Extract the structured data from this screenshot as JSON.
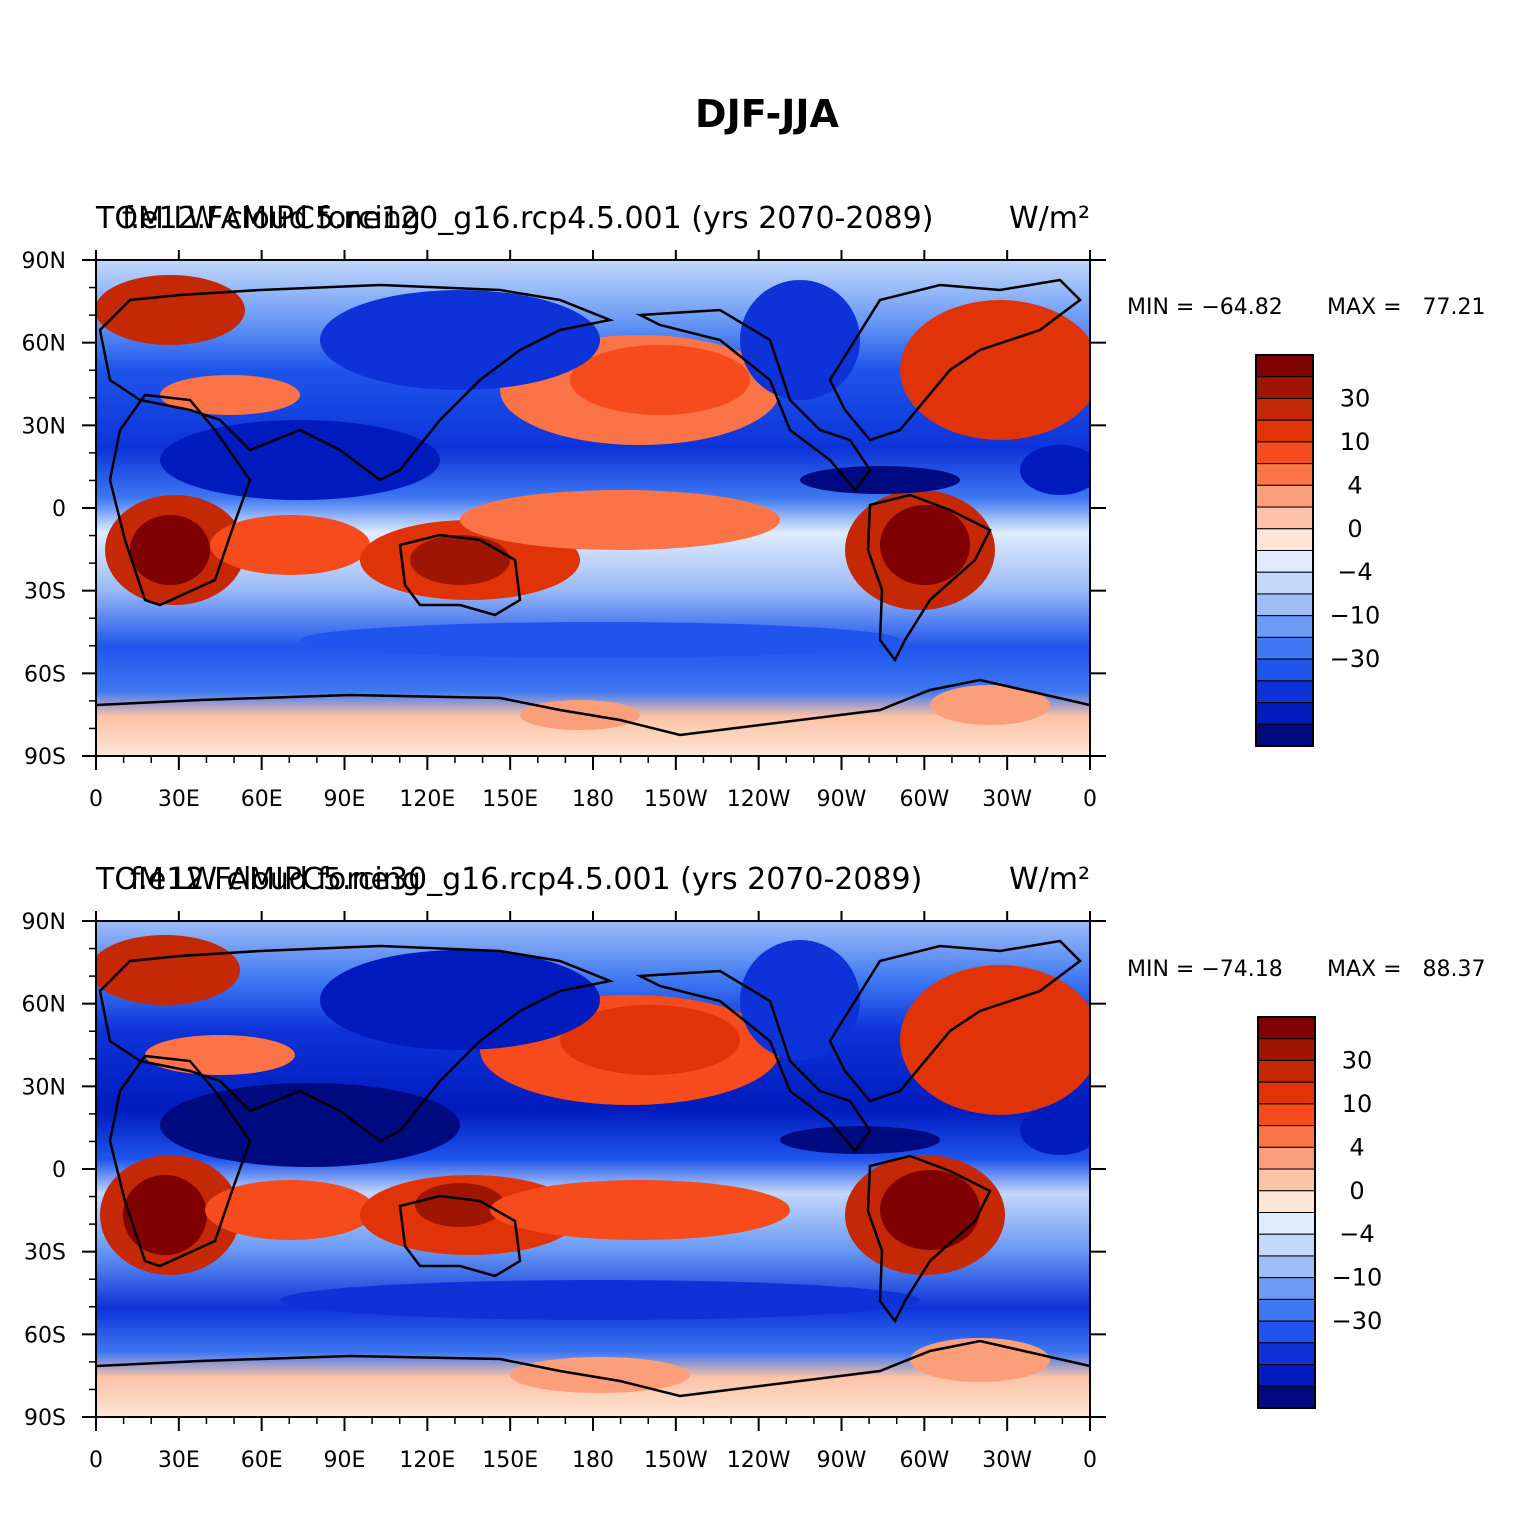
{
  "figure_title": "DJF-JJA",
  "chart_data": [
    {
      "type": "heatmap",
      "title_left": "f.e12.FAMIPC5.ne120_g16.rcp4.5.001 (yrs 2070-2089)",
      "title_left_overlap": "TOM LW cloud forcing",
      "units": "W/m²",
      "min_label": "MIN = −64.82",
      "max_label": "MAX =   77.21",
      "min": -64.82,
      "max": 77.21,
      "x_ticks": [
        "0",
        "30E",
        "60E",
        "90E",
        "120E",
        "150E",
        "180",
        "150W",
        "120W",
        "90W",
        "60W",
        "30W",
        "0"
      ],
      "y_ticks": [
        "90N",
        "60N",
        "30N",
        "0",
        "30S",
        "60S",
        "90S"
      ],
      "xlim": [
        0,
        360
      ],
      "ylim": [
        -90,
        90
      ],
      "colorbar": {
        "labels": [
          "30",
          "10",
          "4",
          "0",
          "−4",
          "−10",
          "−30"
        ],
        "levels": [
          -50,
          -40,
          -30,
          -20,
          -15,
          -10,
          -6,
          -4,
          -2,
          0,
          2,
          4,
          6,
          10,
          15,
          20,
          30,
          40,
          50
        ]
      }
    },
    {
      "type": "heatmap",
      "title_left": "f.e12.FAMIPC5.ne30_g16.rcp4.5.001 (yrs 2070-2089)",
      "title_left_overlap": "TOM LW cloud forcing",
      "units": "W/m²",
      "min_label": "MIN = −74.18",
      "max_label": "MAX =   88.37",
      "min": -74.18,
      "max": 88.37,
      "x_ticks": [
        "0",
        "30E",
        "60E",
        "90E",
        "120E",
        "150E",
        "180",
        "150W",
        "120W",
        "90W",
        "60W",
        "30W",
        "0"
      ],
      "y_ticks": [
        "90N",
        "60N",
        "30N",
        "0",
        "30S",
        "60S",
        "90S"
      ],
      "xlim": [
        0,
        360
      ],
      "ylim": [
        -90,
        90
      ],
      "colorbar": {
        "labels": [
          "30",
          "10",
          "4",
          "0",
          "−4",
          "−10",
          "−30"
        ],
        "levels": [
          -50,
          -40,
          -30,
          -20,
          -15,
          -10,
          -6,
          -4,
          -2,
          0,
          2,
          4,
          6,
          10,
          15,
          20,
          30,
          40,
          50
        ]
      }
    }
  ],
  "colors": {
    "palette": [
      "#000a80",
      "#001bbd",
      "#0d33d8",
      "#1f55ec",
      "#3e78f2",
      "#6b9bf5",
      "#9fbdf6",
      "#c3d8fa",
      "#e0ecfd",
      "#fde6d6",
      "#fcc3a6",
      "#fb9f7b",
      "#fb7448",
      "#f54b1d",
      "#e03308",
      "#c42804",
      "#9e1602",
      "#7e0000"
    ],
    "ocean_base": "#dfe9f8",
    "coast": "#000000"
  }
}
